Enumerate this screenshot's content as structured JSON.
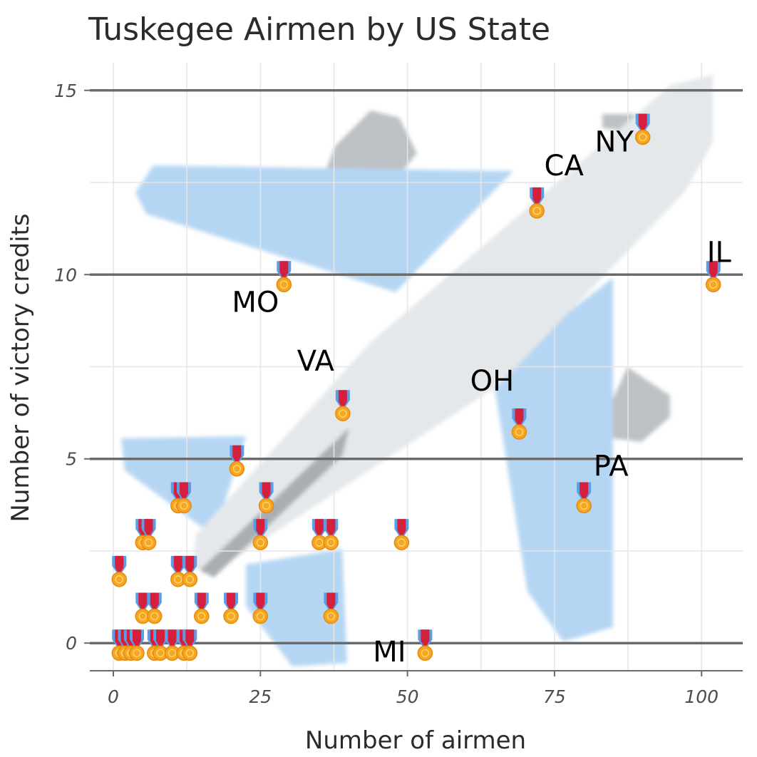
{
  "chart_data": {
    "type": "scatter",
    "title": "Tuskegee Airmen by US State",
    "xlabel": "Number of airmen",
    "ylabel": "Number of victory credits",
    "xlim": [
      -4,
      107
    ],
    "ylim": [
      -0.75,
      15.75
    ],
    "x_ticks": [
      0,
      25,
      50,
      75,
      100
    ],
    "y_ticks": [
      0,
      5,
      10,
      15
    ],
    "grid": true,
    "marker": "medal-icon",
    "background_image": "airplane-icon",
    "colors": {
      "gridline": "#e6e6e6",
      "major_gridline": "#6b6b6b",
      "wing": "#b5d6f3",
      "fuselage": "#e4e8eb",
      "tail": "#bcc1c5",
      "medal_ribbon": "#d51f3d",
      "medal_ribbon_edge": "#5b9ee6",
      "medal_disc": "#f5a623"
    },
    "points": [
      {
        "x": 1,
        "y": 0
      },
      {
        "x": 2,
        "y": 0
      },
      {
        "x": 3,
        "y": 0
      },
      {
        "x": 4,
        "y": 0
      },
      {
        "x": 7,
        "y": 0
      },
      {
        "x": 8,
        "y": 0
      },
      {
        "x": 10,
        "y": 0
      },
      {
        "x": 12,
        "y": 0
      },
      {
        "x": 13,
        "y": 0
      },
      {
        "x": 53,
        "y": 0,
        "label": "MI"
      },
      {
        "x": 5,
        "y": 1
      },
      {
        "x": 7,
        "y": 1
      },
      {
        "x": 15,
        "y": 1
      },
      {
        "x": 20,
        "y": 1
      },
      {
        "x": 25,
        "y": 1
      },
      {
        "x": 37,
        "y": 1
      },
      {
        "x": 1,
        "y": 2
      },
      {
        "x": 11,
        "y": 2
      },
      {
        "x": 13,
        "y": 2
      },
      {
        "x": 5,
        "y": 3
      },
      {
        "x": 6,
        "y": 3
      },
      {
        "x": 25,
        "y": 3
      },
      {
        "x": 35,
        "y": 3
      },
      {
        "x": 37,
        "y": 3
      },
      {
        "x": 49,
        "y": 3
      },
      {
        "x": 11,
        "y": 4
      },
      {
        "x": 12,
        "y": 4
      },
      {
        "x": 26,
        "y": 4
      },
      {
        "x": 80,
        "y": 4,
        "label": "PA"
      },
      {
        "x": 21,
        "y": 5
      },
      {
        "x": 39,
        "y": 6.5,
        "label": "VA"
      },
      {
        "x": 69,
        "y": 6,
        "label": "OH"
      },
      {
        "x": 29,
        "y": 10,
        "label": "MO"
      },
      {
        "x": 102,
        "y": 10,
        "label": "IL"
      },
      {
        "x": 72,
        "y": 12,
        "label": "CA"
      },
      {
        "x": 90,
        "y": 14,
        "label": "NY"
      }
    ]
  }
}
